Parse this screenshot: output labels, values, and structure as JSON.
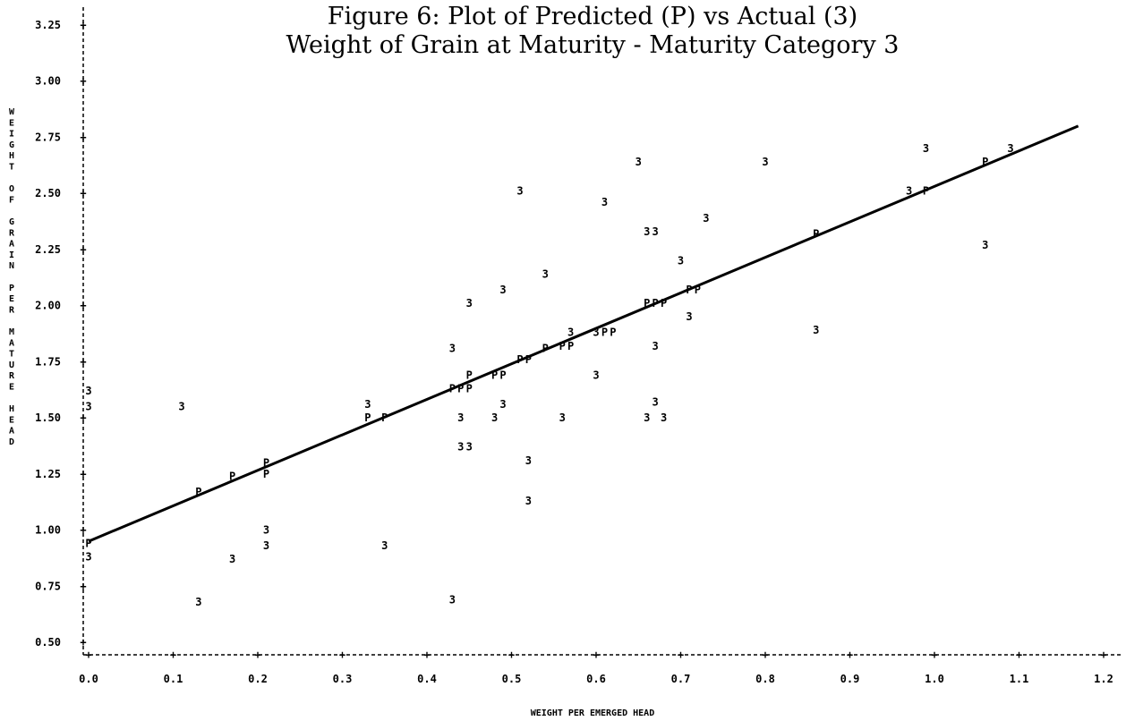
{
  "title_line1": "Figure 6:  Plot of Predicted (P) vs Actual (3)",
  "title_line2": "Weight of Grain at Maturity - Maturity Category 3",
  "chart_data": {
    "type": "scatter",
    "xlabel": "WEIGHT PER EMERGED HEAD",
    "ylabel": "WEIGHT OF GRAIN PER MATURE HEAD",
    "xlim": [
      0.0,
      1.2
    ],
    "ylim": [
      0.5,
      3.25
    ],
    "x_ticks": [
      "0.0",
      "0.1",
      "0.2",
      "0.3",
      "0.4",
      "0.5",
      "0.6",
      "0.7",
      "0.8",
      "0.9",
      "1.0",
      "1.1",
      "1.2"
    ],
    "y_ticks": [
      "3.25",
      "3.00",
      "2.75",
      "2.50",
      "2.25",
      "2.00",
      "1.75",
      "1.50",
      "1.25",
      "1.00",
      "0.75",
      "0.50"
    ],
    "fit_line": {
      "x": [
        0.0,
        1.17
      ],
      "y": [
        0.95,
        2.8
      ]
    },
    "series": [
      {
        "marker": "3",
        "points": [
          {
            "x": 0.0,
            "y": 1.62
          },
          {
            "x": 0.0,
            "y": 1.55
          },
          {
            "x": 0.0,
            "y": 0.88
          },
          {
            "x": 0.11,
            "y": 1.55
          },
          {
            "x": 0.13,
            "y": 0.68
          },
          {
            "x": 0.17,
            "y": 0.87
          },
          {
            "x": 0.21,
            "y": 1.0
          },
          {
            "x": 0.21,
            "y": 0.93
          },
          {
            "x": 0.33,
            "y": 1.56
          },
          {
            "x": 0.35,
            "y": 0.93
          },
          {
            "x": 0.43,
            "y": 0.69
          },
          {
            "x": 0.43,
            "y": 1.81
          },
          {
            "x": 0.44,
            "y": 1.5
          },
          {
            "x": 0.44,
            "y": 1.37
          },
          {
            "x": 0.45,
            "y": 1.37
          },
          {
            "x": 0.45,
            "y": 2.01
          },
          {
            "x": 0.48,
            "y": 1.5
          },
          {
            "x": 0.49,
            "y": 2.07
          },
          {
            "x": 0.49,
            "y": 1.56
          },
          {
            "x": 0.51,
            "y": 2.51
          },
          {
            "x": 0.52,
            "y": 1.31
          },
          {
            "x": 0.52,
            "y": 1.13
          },
          {
            "x": 0.54,
            "y": 2.14
          },
          {
            "x": 0.56,
            "y": 1.5
          },
          {
            "x": 0.57,
            "y": 1.88
          },
          {
            "x": 0.6,
            "y": 1.69
          },
          {
            "x": 0.6,
            "y": 1.88
          },
          {
            "x": 0.61,
            "y": 2.46
          },
          {
            "x": 0.65,
            "y": 2.64
          },
          {
            "x": 0.66,
            "y": 2.33
          },
          {
            "x": 0.67,
            "y": 2.33
          },
          {
            "x": 0.66,
            "y": 1.5
          },
          {
            "x": 0.67,
            "y": 1.82
          },
          {
            "x": 0.67,
            "y": 1.57
          },
          {
            "x": 0.68,
            "y": 1.5
          },
          {
            "x": 0.7,
            "y": 2.2
          },
          {
            "x": 0.71,
            "y": 1.95
          },
          {
            "x": 0.73,
            "y": 2.39
          },
          {
            "x": 0.8,
            "y": 2.64
          },
          {
            "x": 0.86,
            "y": 1.89
          },
          {
            "x": 0.97,
            "y": 2.51
          },
          {
            "x": 0.99,
            "y": 2.7
          },
          {
            "x": 1.06,
            "y": 2.27
          },
          {
            "x": 1.09,
            "y": 2.7
          }
        ]
      },
      {
        "marker": "P",
        "points": [
          {
            "x": 0.0,
            "y": 0.94
          },
          {
            "x": 0.13,
            "y": 1.17
          },
          {
            "x": 0.17,
            "y": 1.24
          },
          {
            "x": 0.21,
            "y": 1.25
          },
          {
            "x": 0.21,
            "y": 1.3
          },
          {
            "x": 0.33,
            "y": 1.5
          },
          {
            "x": 0.35,
            "y": 1.5
          },
          {
            "x": 0.43,
            "y": 1.63
          },
          {
            "x": 0.44,
            "y": 1.63
          },
          {
            "x": 0.45,
            "y": 1.63
          },
          {
            "x": 0.45,
            "y": 1.69
          },
          {
            "x": 0.48,
            "y": 1.69
          },
          {
            "x": 0.49,
            "y": 1.69
          },
          {
            "x": 0.51,
            "y": 1.76
          },
          {
            "x": 0.52,
            "y": 1.76
          },
          {
            "x": 0.54,
            "y": 1.81
          },
          {
            "x": 0.56,
            "y": 1.82
          },
          {
            "x": 0.57,
            "y": 1.82
          },
          {
            "x": 0.61,
            "y": 1.88
          },
          {
            "x": 0.62,
            "y": 1.88
          },
          {
            "x": 0.66,
            "y": 2.01
          },
          {
            "x": 0.67,
            "y": 2.01
          },
          {
            "x": 0.68,
            "y": 2.01
          },
          {
            "x": 0.71,
            "y": 2.07
          },
          {
            "x": 0.72,
            "y": 2.07
          },
          {
            "x": 0.86,
            "y": 2.32
          },
          {
            "x": 0.99,
            "y": 2.51
          },
          {
            "x": 1.06,
            "y": 2.64
          }
        ]
      }
    ]
  }
}
